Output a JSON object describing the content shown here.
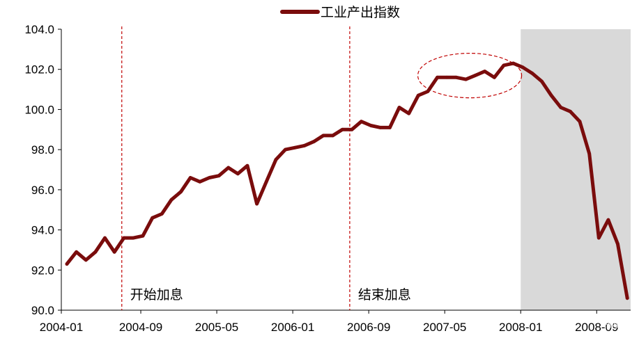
{
  "chart_data": {
    "type": "line",
    "series": [
      {
        "name": "工业产出指数",
        "color": "#7a0c0c",
        "points": [
          [
            "2004-01",
            92.3
          ],
          [
            "2004-02",
            92.9
          ],
          [
            "2004-03",
            92.5
          ],
          [
            "2004-04",
            92.9
          ],
          [
            "2004-05",
            93.6
          ],
          [
            "2004-06",
            92.9
          ],
          [
            "2004-07",
            93.6
          ],
          [
            "2004-08",
            93.6
          ],
          [
            "2004-09",
            93.7
          ],
          [
            "2004-10",
            94.6
          ],
          [
            "2004-11",
            94.8
          ],
          [
            "2004-12",
            95.5
          ],
          [
            "2005-01",
            95.9
          ],
          [
            "2005-02",
            96.6
          ],
          [
            "2005-03",
            96.4
          ],
          [
            "2005-04",
            96.6
          ],
          [
            "2005-05",
            96.7
          ],
          [
            "2005-06",
            97.1
          ],
          [
            "2005-07",
            96.8
          ],
          [
            "2005-08",
            97.2
          ],
          [
            "2005-09",
            95.3
          ],
          [
            "2005-10",
            96.4
          ],
          [
            "2005-11",
            97.5
          ],
          [
            "2005-12",
            98.0
          ],
          [
            "2006-01",
            98.1
          ],
          [
            "2006-02",
            98.2
          ],
          [
            "2006-03",
            98.4
          ],
          [
            "2006-04",
            98.7
          ],
          [
            "2006-05",
            98.7
          ],
          [
            "2006-06",
            99.0
          ],
          [
            "2006-07",
            99.0
          ],
          [
            "2006-08",
            99.4
          ],
          [
            "2006-09",
            99.2
          ],
          [
            "2006-10",
            99.1
          ],
          [
            "2006-11",
            99.1
          ],
          [
            "2006-12",
            100.1
          ],
          [
            "2007-01",
            99.8
          ],
          [
            "2007-02",
            100.7
          ],
          [
            "2007-03",
            100.9
          ],
          [
            "2007-04",
            101.6
          ],
          [
            "2007-05",
            101.6
          ],
          [
            "2007-06",
            101.6
          ],
          [
            "2007-07",
            101.5
          ],
          [
            "2007-08",
            101.7
          ],
          [
            "2007-09",
            101.9
          ],
          [
            "2007-10",
            101.6
          ],
          [
            "2007-11",
            102.2
          ],
          [
            "2007-12",
            102.3
          ],
          [
            "2008-01",
            102.1
          ],
          [
            "2008-02",
            101.8
          ],
          [
            "2008-03",
            101.4
          ],
          [
            "2008-04",
            100.7
          ],
          [
            "2008-05",
            100.1
          ],
          [
            "2008-06",
            99.9
          ],
          [
            "2008-07",
            99.4
          ],
          [
            "2008-08",
            97.8
          ],
          [
            "2008-09",
            93.6
          ],
          [
            "2008-10",
            94.5
          ],
          [
            "2008-11",
            93.3
          ],
          [
            "2008-12",
            90.6
          ]
        ]
      }
    ],
    "x_ticks": [
      "2004-01",
      "2004-09",
      "2005-05",
      "2006-01",
      "2006-09",
      "2007-05",
      "2008-01",
      "2008-09"
    ],
    "y_ticks": [
      "90.0",
      "92.0",
      "94.0",
      "96.0",
      "98.0",
      "100.0",
      "102.0",
      "104.0"
    ],
    "ylim": [
      90,
      104
    ],
    "xlim": [
      "2004-01",
      "2008-12"
    ],
    "legend": {
      "position": "top-center"
    },
    "grid": false,
    "recession_shading": {
      "from": "2008-01",
      "to": "2008-12",
      "color": "#d9d9d9"
    },
    "vlines": [
      {
        "x": "2004-07",
        "label": "开始加息",
        "color": "#c00000"
      },
      {
        "x": "2006-07",
        "label": "结束加息",
        "color": "#c00000"
      }
    ],
    "highlight_ellipse": {
      "from": "2007-04",
      "to": "2007-12",
      "color": "#c00000"
    }
  },
  "watermark": "格隆汇"
}
